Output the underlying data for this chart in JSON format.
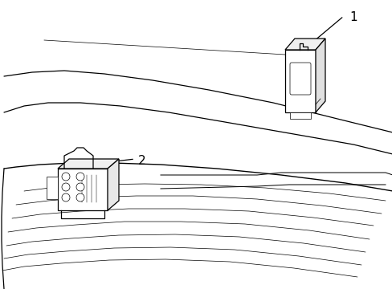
{
  "bg_color": "#ffffff",
  "line_color": "#000000",
  "lw": 0.9,
  "tlw": 0.5,
  "figsize": [
    4.89,
    3.6
  ],
  "dpi": 100,
  "label1_text": "1",
  "label2_text": "2"
}
